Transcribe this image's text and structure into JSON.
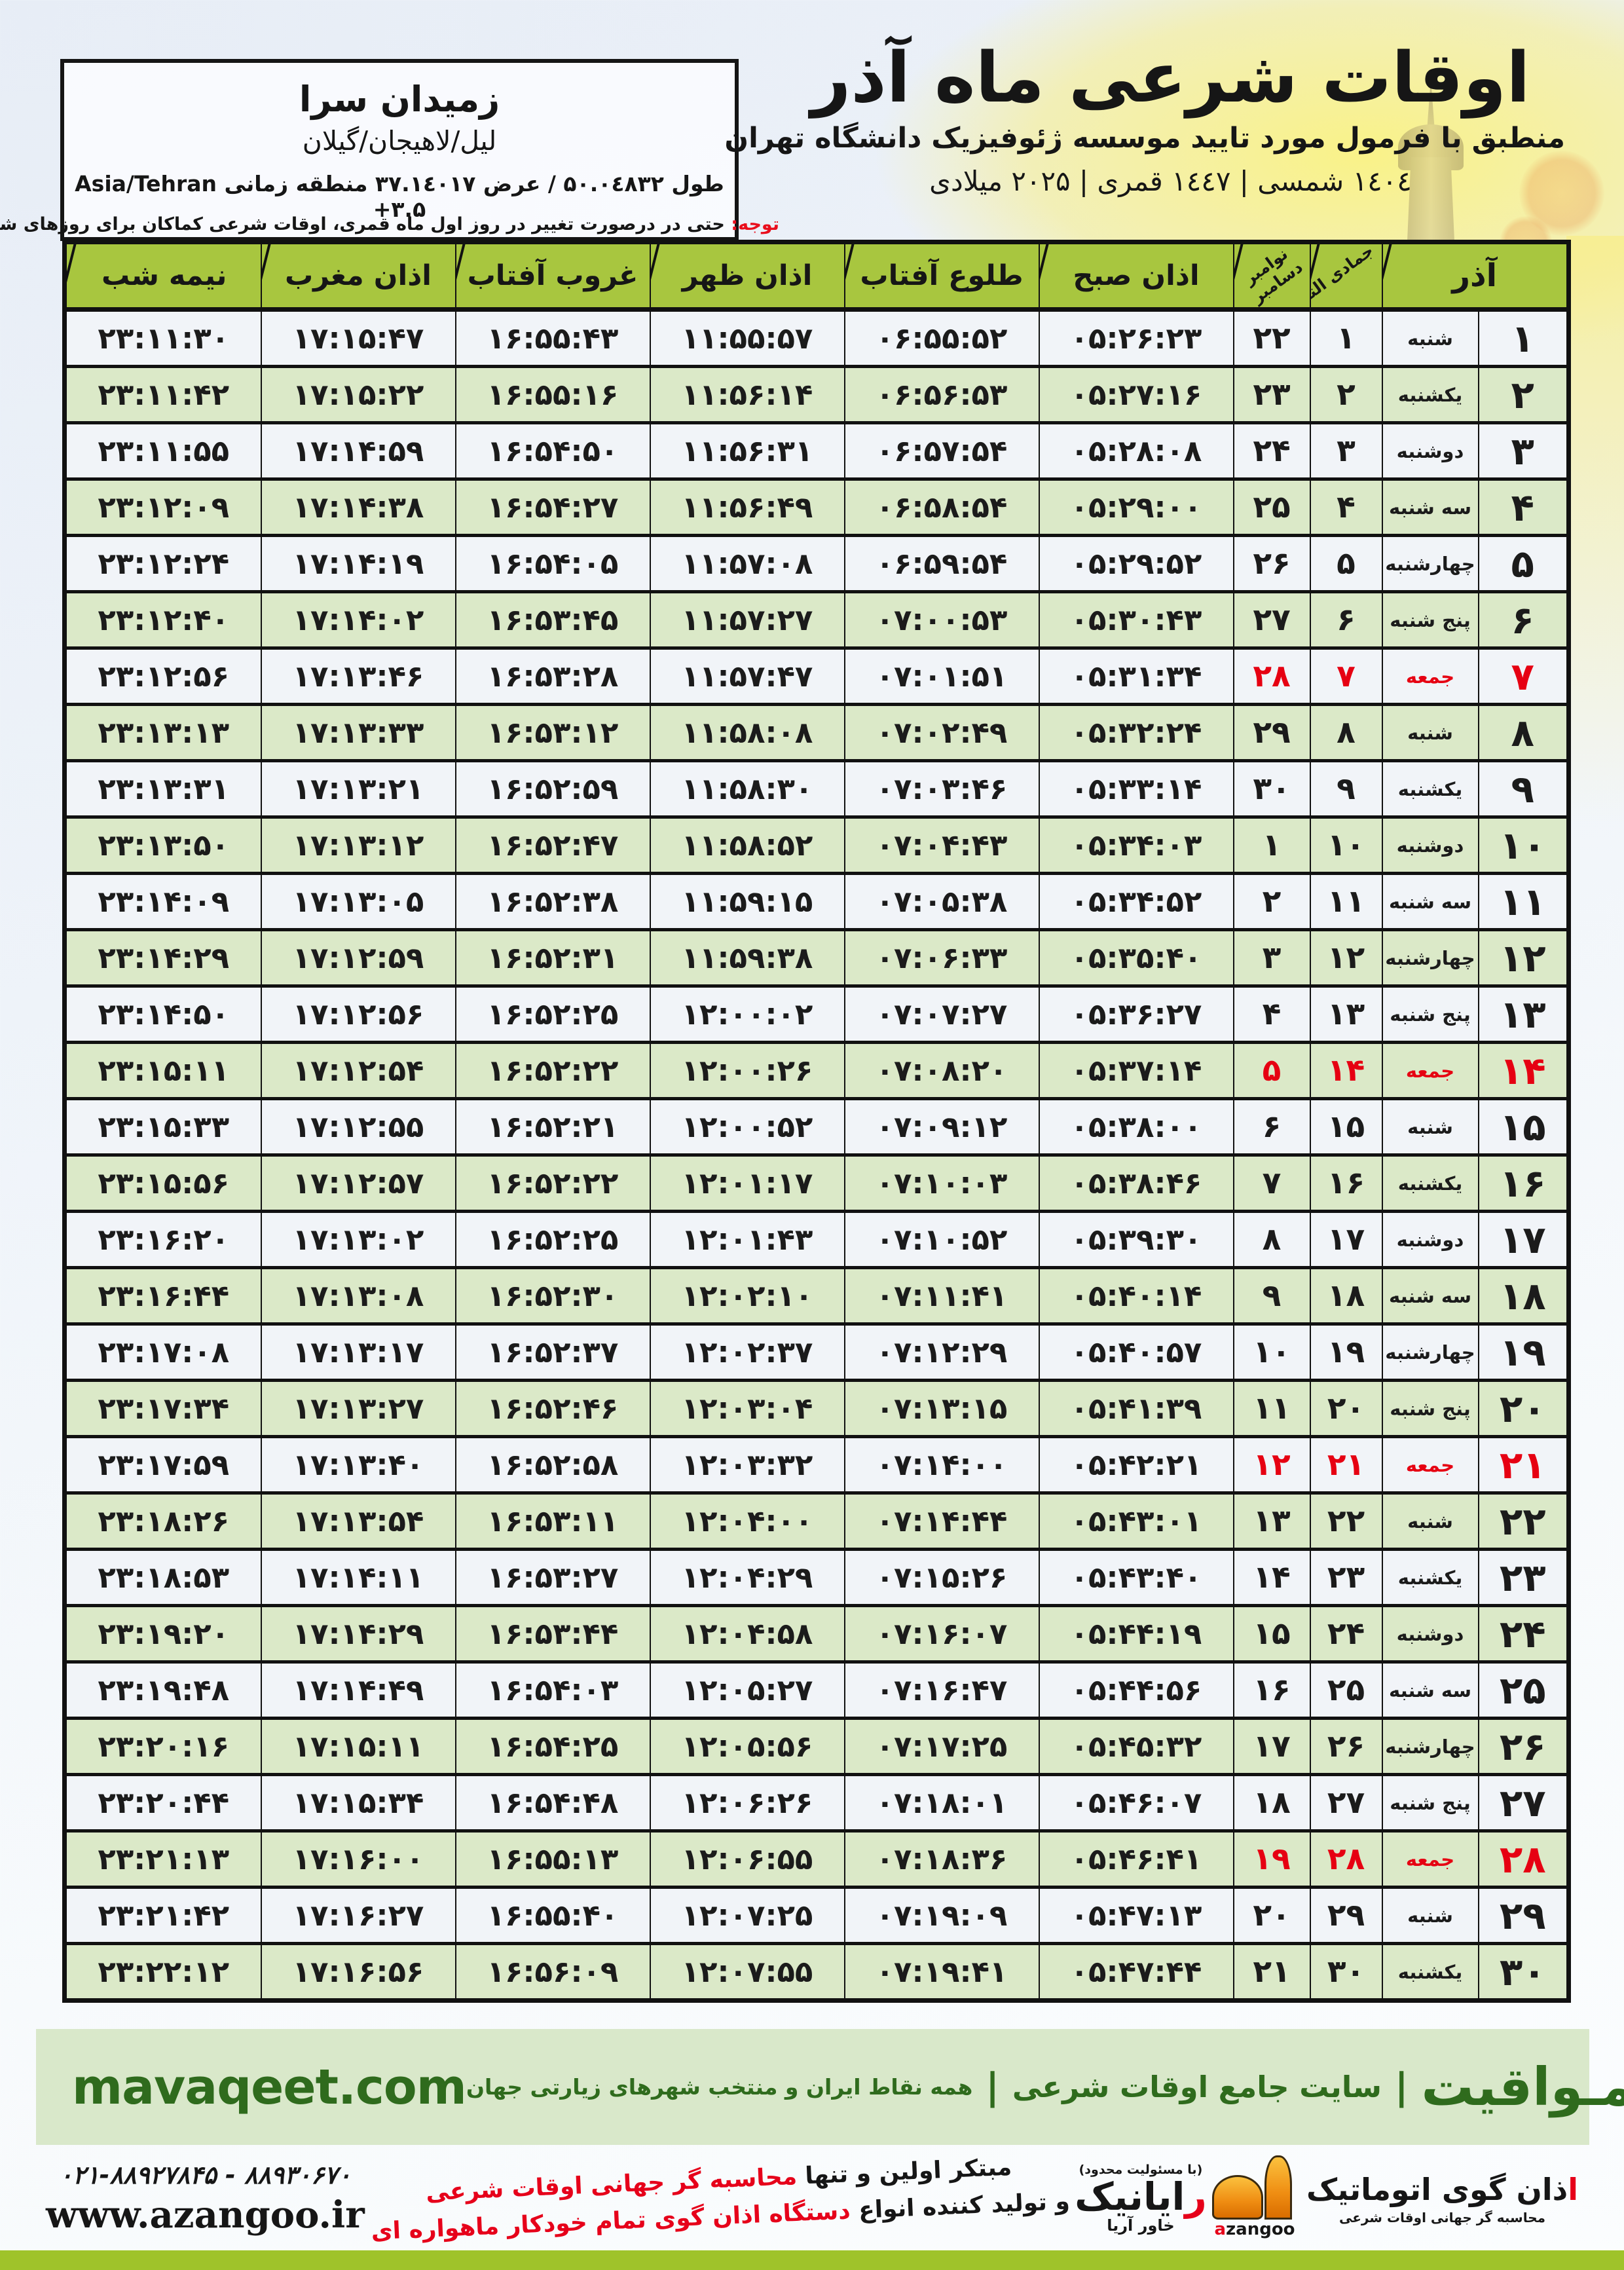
{
  "header": {
    "title": "اوقات شرعی ماه آذر",
    "subtitle": "منطبق با فرمول مورد تایید موسسه ژئوفیزیک دانشگاه تهران",
    "calendar_line": "۱٤۰٤ شمسی | ۱٤٤۷ قمری | ۲۰۲۵ میلادی",
    "location": {
      "name": "زمیدان سرا",
      "region": "لیل/لاهیجان/گیلان",
      "coords_rtl": "طول ۵۰.۰٤۸۳۲ / عرض ۳۷.۱٤۰۱۷ منطقه زمانی",
      "coords_ltr": "Asia/Tehran +۳.۵"
    },
    "notice_label": "توجه:",
    "notice_text": "حتی در درصورت تغییر در روز اول ماه قمری، اوقات شرعی کماکان برای روزهای شمسی و میلادی معتبر است."
  },
  "colors": {
    "header_green": "#a8c63f",
    "row_green": "#dbe9c8",
    "row_light": "#f1f4f8",
    "friday_red": "#e60012",
    "notice_red": "#e90f1d",
    "footer_green_bg": "#d9e8ca",
    "footer_green_text": "#2f6b1d",
    "strip_green": "#9fc32a",
    "logo_orange": "#ef8d12"
  },
  "table": {
    "columns": {
      "azar": "آذر",
      "lunar": "جمادی الثانی",
      "greg_top": "نوامبر",
      "greg_bottom": "دسامبر",
      "fajr": "اذان صبح",
      "sunrise": "طلوع آفتاب",
      "dhuhr": "اذان ظهر",
      "sunset": "غروب آفتاب",
      "maghrib": "اذان مغرب",
      "midnight": "نیمه شب"
    },
    "rows": [
      {
        "azar": "۱",
        "weekday": "شنبه",
        "lunar": "۱",
        "greg": "۲۲",
        "fajr": "۰۵:۲۶:۲۳",
        "sunrise": "۰۶:۵۵:۵۲",
        "dhuhr": "۱۱:۵۵:۵۷",
        "sunset": "۱۶:۵۵:۴۳",
        "maghrib": "۱۷:۱۵:۴۷",
        "midnight": "۲۳:۱۱:۳۰",
        "friday": false
      },
      {
        "azar": "۲",
        "weekday": "یکشنبه",
        "lunar": "۲",
        "greg": "۲۳",
        "fajr": "۰۵:۲۷:۱۶",
        "sunrise": "۰۶:۵۶:۵۳",
        "dhuhr": "۱۱:۵۶:۱۴",
        "sunset": "۱۶:۵۵:۱۶",
        "maghrib": "۱۷:۱۵:۲۲",
        "midnight": "۲۳:۱۱:۴۲",
        "friday": false
      },
      {
        "azar": "۳",
        "weekday": "دوشنبه",
        "lunar": "۳",
        "greg": "۲۴",
        "fajr": "۰۵:۲۸:۰۸",
        "sunrise": "۰۶:۵۷:۵۴",
        "dhuhr": "۱۱:۵۶:۳۱",
        "sunset": "۱۶:۵۴:۵۰",
        "maghrib": "۱۷:۱۴:۵۹",
        "midnight": "۲۳:۱۱:۵۵",
        "friday": false
      },
      {
        "azar": "۴",
        "weekday": "سه شنبه",
        "lunar": "۴",
        "greg": "۲۵",
        "fajr": "۰۵:۲۹:۰۰",
        "sunrise": "۰۶:۵۸:۵۴",
        "dhuhr": "۱۱:۵۶:۴۹",
        "sunset": "۱۶:۵۴:۲۷",
        "maghrib": "۱۷:۱۴:۳۸",
        "midnight": "۲۳:۱۲:۰۹",
        "friday": false
      },
      {
        "azar": "۵",
        "weekday": "چهارشنبه",
        "lunar": "۵",
        "greg": "۲۶",
        "fajr": "۰۵:۲۹:۵۲",
        "sunrise": "۰۶:۵۹:۵۴",
        "dhuhr": "۱۱:۵۷:۰۸",
        "sunset": "۱۶:۵۴:۰۵",
        "maghrib": "۱۷:۱۴:۱۹",
        "midnight": "۲۳:۱۲:۲۴",
        "friday": false
      },
      {
        "azar": "۶",
        "weekday": "پنج شنبه",
        "lunar": "۶",
        "greg": "۲۷",
        "fajr": "۰۵:۳۰:۴۳",
        "sunrise": "۰۷:۰۰:۵۳",
        "dhuhr": "۱۱:۵۷:۲۷",
        "sunset": "۱۶:۵۳:۴۵",
        "maghrib": "۱۷:۱۴:۰۲",
        "midnight": "۲۳:۱۲:۴۰",
        "friday": false
      },
      {
        "azar": "۷",
        "weekday": "جمعه",
        "lunar": "۷",
        "greg": "۲۸",
        "fajr": "۰۵:۳۱:۳۴",
        "sunrise": "۰۷:۰۱:۵۱",
        "dhuhr": "۱۱:۵۷:۴۷",
        "sunset": "۱۶:۵۳:۲۸",
        "maghrib": "۱۷:۱۳:۴۶",
        "midnight": "۲۳:۱۲:۵۶",
        "friday": true
      },
      {
        "azar": "۸",
        "weekday": "شنبه",
        "lunar": "۸",
        "greg": "۲۹",
        "fajr": "۰۵:۳۲:۲۴",
        "sunrise": "۰۷:۰۲:۴۹",
        "dhuhr": "۱۱:۵۸:۰۸",
        "sunset": "۱۶:۵۳:۱۲",
        "maghrib": "۱۷:۱۳:۳۳",
        "midnight": "۲۳:۱۳:۱۳",
        "friday": false
      },
      {
        "azar": "۹",
        "weekday": "یکشنبه",
        "lunar": "۹",
        "greg": "۳۰",
        "fajr": "۰۵:۳۳:۱۴",
        "sunrise": "۰۷:۰۳:۴۶",
        "dhuhr": "۱۱:۵۸:۳۰",
        "sunset": "۱۶:۵۲:۵۹",
        "maghrib": "۱۷:۱۳:۲۱",
        "midnight": "۲۳:۱۳:۳۱",
        "friday": false
      },
      {
        "azar": "۱۰",
        "weekday": "دوشنبه",
        "lunar": "۱۰",
        "greg": "۱",
        "fajr": "۰۵:۳۴:۰۳",
        "sunrise": "۰۷:۰۴:۴۳",
        "dhuhr": "۱۱:۵۸:۵۲",
        "sunset": "۱۶:۵۲:۴۷",
        "maghrib": "۱۷:۱۳:۱۲",
        "midnight": "۲۳:۱۳:۵۰",
        "friday": false
      },
      {
        "azar": "۱۱",
        "weekday": "سه شنبه",
        "lunar": "۱۱",
        "greg": "۲",
        "fajr": "۰۵:۳۴:۵۲",
        "sunrise": "۰۷:۰۵:۳۸",
        "dhuhr": "۱۱:۵۹:۱۵",
        "sunset": "۱۶:۵۲:۳۸",
        "maghrib": "۱۷:۱۳:۰۵",
        "midnight": "۲۳:۱۴:۰۹",
        "friday": false
      },
      {
        "azar": "۱۲",
        "weekday": "چهارشنبه",
        "lunar": "۱۲",
        "greg": "۳",
        "fajr": "۰۵:۳۵:۴۰",
        "sunrise": "۰۷:۰۶:۳۳",
        "dhuhr": "۱۱:۵۹:۳۸",
        "sunset": "۱۶:۵۲:۳۱",
        "maghrib": "۱۷:۱۲:۵۹",
        "midnight": "۲۳:۱۴:۲۹",
        "friday": false
      },
      {
        "azar": "۱۳",
        "weekday": "پنج شنبه",
        "lunar": "۱۳",
        "greg": "۴",
        "fajr": "۰۵:۳۶:۲۷",
        "sunrise": "۰۷:۰۷:۲۷",
        "dhuhr": "۱۲:۰۰:۰۲",
        "sunset": "۱۶:۵۲:۲۵",
        "maghrib": "۱۷:۱۲:۵۶",
        "midnight": "۲۳:۱۴:۵۰",
        "friday": false
      },
      {
        "azar": "۱۴",
        "weekday": "جمعه",
        "lunar": "۱۴",
        "greg": "۵",
        "fajr": "۰۵:۳۷:۱۴",
        "sunrise": "۰۷:۰۸:۲۰",
        "dhuhr": "۱۲:۰۰:۲۶",
        "sunset": "۱۶:۵۲:۲۲",
        "maghrib": "۱۷:۱۲:۵۴",
        "midnight": "۲۳:۱۵:۱۱",
        "friday": true
      },
      {
        "azar": "۱۵",
        "weekday": "شنبه",
        "lunar": "۱۵",
        "greg": "۶",
        "fajr": "۰۵:۳۸:۰۰",
        "sunrise": "۰۷:۰۹:۱۲",
        "dhuhr": "۱۲:۰۰:۵۲",
        "sunset": "۱۶:۵۲:۲۱",
        "maghrib": "۱۷:۱۲:۵۵",
        "midnight": "۲۳:۱۵:۳۳",
        "friday": false
      },
      {
        "azar": "۱۶",
        "weekday": "یکشنبه",
        "lunar": "۱۶",
        "greg": "۷",
        "fajr": "۰۵:۳۸:۴۶",
        "sunrise": "۰۷:۱۰:۰۳",
        "dhuhr": "۱۲:۰۱:۱۷",
        "sunset": "۱۶:۵۲:۲۲",
        "maghrib": "۱۷:۱۲:۵۷",
        "midnight": "۲۳:۱۵:۵۶",
        "friday": false
      },
      {
        "azar": "۱۷",
        "weekday": "دوشنبه",
        "lunar": "۱۷",
        "greg": "۸",
        "fajr": "۰۵:۳۹:۳۰",
        "sunrise": "۰۷:۱۰:۵۲",
        "dhuhr": "۱۲:۰۱:۴۳",
        "sunset": "۱۶:۵۲:۲۵",
        "maghrib": "۱۷:۱۳:۰۲",
        "midnight": "۲۳:۱۶:۲۰",
        "friday": false
      },
      {
        "azar": "۱۸",
        "weekday": "سه شنبه",
        "lunar": "۱۸",
        "greg": "۹",
        "fajr": "۰۵:۴۰:۱۴",
        "sunrise": "۰۷:۱۱:۴۱",
        "dhuhr": "۱۲:۰۲:۱۰",
        "sunset": "۱۶:۵۲:۳۰",
        "maghrib": "۱۷:۱۳:۰۸",
        "midnight": "۲۳:۱۶:۴۴",
        "friday": false
      },
      {
        "azar": "۱۹",
        "weekday": "چهارشنبه",
        "lunar": "۱۹",
        "greg": "۱۰",
        "fajr": "۰۵:۴۰:۵۷",
        "sunrise": "۰۷:۱۲:۲۹",
        "dhuhr": "۱۲:۰۲:۳۷",
        "sunset": "۱۶:۵۲:۳۷",
        "maghrib": "۱۷:۱۳:۱۷",
        "midnight": "۲۳:۱۷:۰۸",
        "friday": false
      },
      {
        "azar": "۲۰",
        "weekday": "پنج شنبه",
        "lunar": "۲۰",
        "greg": "۱۱",
        "fajr": "۰۵:۴۱:۳۹",
        "sunrise": "۰۷:۱۳:۱۵",
        "dhuhr": "۱۲:۰۳:۰۴",
        "sunset": "۱۶:۵۲:۴۶",
        "maghrib": "۱۷:۱۳:۲۷",
        "midnight": "۲۳:۱۷:۳۴",
        "friday": false
      },
      {
        "azar": "۲۱",
        "weekday": "جمعه",
        "lunar": "۲۱",
        "greg": "۱۲",
        "fajr": "۰۵:۴۲:۲۱",
        "sunrise": "۰۷:۱۴:۰۰",
        "dhuhr": "۱۲:۰۳:۳۲",
        "sunset": "۱۶:۵۲:۵۸",
        "maghrib": "۱۷:۱۳:۴۰",
        "midnight": "۲۳:۱۷:۵۹",
        "friday": true
      },
      {
        "azar": "۲۲",
        "weekday": "شنبه",
        "lunar": "۲۲",
        "greg": "۱۳",
        "fajr": "۰۵:۴۳:۰۱",
        "sunrise": "۰۷:۱۴:۴۴",
        "dhuhr": "۱۲:۰۴:۰۰",
        "sunset": "۱۶:۵۳:۱۱",
        "maghrib": "۱۷:۱۳:۵۴",
        "midnight": "۲۳:۱۸:۲۶",
        "friday": false
      },
      {
        "azar": "۲۳",
        "weekday": "یکشنبه",
        "lunar": "۲۳",
        "greg": "۱۴",
        "fajr": "۰۵:۴۳:۴۰",
        "sunrise": "۰۷:۱۵:۲۶",
        "dhuhr": "۱۲:۰۴:۲۹",
        "sunset": "۱۶:۵۳:۲۷",
        "maghrib": "۱۷:۱۴:۱۱",
        "midnight": "۲۳:۱۸:۵۳",
        "friday": false
      },
      {
        "azar": "۲۴",
        "weekday": "دوشنبه",
        "lunar": "۲۴",
        "greg": "۱۵",
        "fajr": "۰۵:۴۴:۱۹",
        "sunrise": "۰۷:۱۶:۰۷",
        "dhuhr": "۱۲:۰۴:۵۸",
        "sunset": "۱۶:۵۳:۴۴",
        "maghrib": "۱۷:۱۴:۲۹",
        "midnight": "۲۳:۱۹:۲۰",
        "friday": false
      },
      {
        "azar": "۲۵",
        "weekday": "سه شنبه",
        "lunar": "۲۵",
        "greg": "۱۶",
        "fajr": "۰۵:۴۴:۵۶",
        "sunrise": "۰۷:۱۶:۴۷",
        "dhuhr": "۱۲:۰۵:۲۷",
        "sunset": "۱۶:۵۴:۰۳",
        "maghrib": "۱۷:۱۴:۴۹",
        "midnight": "۲۳:۱۹:۴۸",
        "friday": false
      },
      {
        "azar": "۲۶",
        "weekday": "چهارشنبه",
        "lunar": "۲۶",
        "greg": "۱۷",
        "fajr": "۰۵:۴۵:۳۲",
        "sunrise": "۰۷:۱۷:۲۵",
        "dhuhr": "۱۲:۰۵:۵۶",
        "sunset": "۱۶:۵۴:۲۵",
        "maghrib": "۱۷:۱۵:۱۱",
        "midnight": "۲۳:۲۰:۱۶",
        "friday": false
      },
      {
        "azar": "۲۷",
        "weekday": "پنج شنبه",
        "lunar": "۲۷",
        "greg": "۱۸",
        "fajr": "۰۵:۴۶:۰۷",
        "sunrise": "۰۷:۱۸:۰۱",
        "dhuhr": "۱۲:۰۶:۲۶",
        "sunset": "۱۶:۵۴:۴۸",
        "maghrib": "۱۷:۱۵:۳۴",
        "midnight": "۲۳:۲۰:۴۴",
        "friday": false
      },
      {
        "azar": "۲۸",
        "weekday": "جمعه",
        "lunar": "۲۸",
        "greg": "۱۹",
        "fajr": "۰۵:۴۶:۴۱",
        "sunrise": "۰۷:۱۸:۳۶",
        "dhuhr": "۱۲:۰۶:۵۵",
        "sunset": "۱۶:۵۵:۱۳",
        "maghrib": "۱۷:۱۶:۰۰",
        "midnight": "۲۳:۲۱:۱۳",
        "friday": true
      },
      {
        "azar": "۲۹",
        "weekday": "شنبه",
        "lunar": "۲۹",
        "greg": "۲۰",
        "fajr": "۰۵:۴۷:۱۳",
        "sunrise": "۰۷:۱۹:۰۹",
        "dhuhr": "۱۲:۰۷:۲۵",
        "sunset": "۱۶:۵۵:۴۰",
        "maghrib": "۱۷:۱۶:۲۷",
        "midnight": "۲۳:۲۱:۴۲",
        "friday": false
      },
      {
        "azar": "۳۰",
        "weekday": "یکشنبه",
        "lunar": "۳۰",
        "greg": "۲۱",
        "fajr": "۰۵:۴۷:۴۴",
        "sunrise": "۰۷:۱۹:۴۱",
        "dhuhr": "۱۲:۰۷:۵۵",
        "sunset": "۱۶:۵۶:۰۹",
        "maghrib": "۱۷:۱۶:۵۶",
        "midnight": "۲۳:۲۲:۱۲",
        "friday": false
      }
    ]
  },
  "footer": {
    "mavaqeet": {
      "title": "مـواقیت",
      "separator": "|",
      "mid": "سایت جامع اوقات شرعی",
      "tail": "همه نقاط ایران و منتخب شهرهای زیارتی جهان",
      "domain": "mavaqeet.com"
    },
    "phones": "۰۲۱-۸۸۹۲۷۸۴۵ - ۸۸۹۳۰۶۷۰",
    "site": "www.azangoo.ir",
    "claims": {
      "line1_black": "مبتکر اولین و تنها ",
      "line1_red": "محاسبه گر جهانی اوقات شرعی",
      "line2_black": "و تولید کننده انواع ",
      "line2_red": "دستگاه اذان گوی تمام خودکار ماهواره ای"
    },
    "rayanik": {
      "tiny": "(با مسئولیت محدود)",
      "main_first": "ر",
      "main_rest": "ایانیک",
      "sub": "خاور آریا"
    },
    "azangoo": {
      "word_first": "ا",
      "word_rest": "ذان گوی اتوماتیک",
      "sub": "محاسبه گر جهانی اوقات شرعی",
      "latin_first": "a",
      "latin_rest": "zangoo"
    }
  }
}
